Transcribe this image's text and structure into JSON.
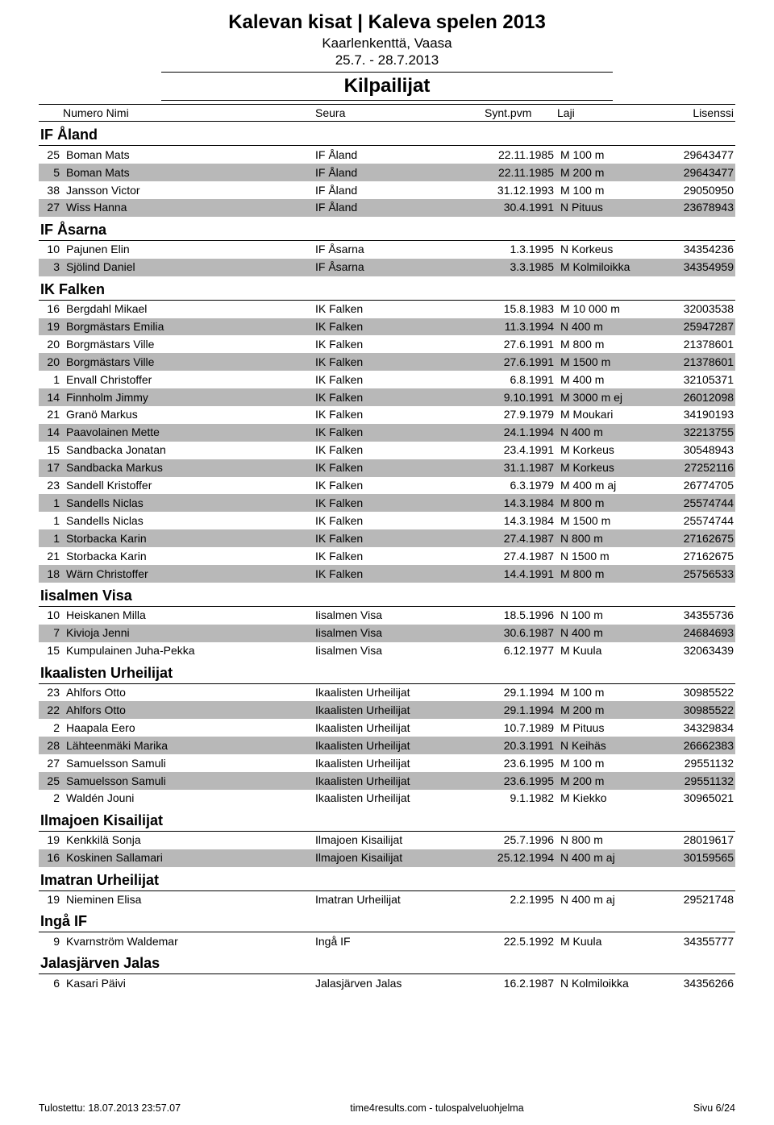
{
  "colors": {
    "shade": "#b8b8b8",
    "text": "#000000",
    "bg": "#ffffff"
  },
  "header": {
    "event_title": "Kalevan kisat | Kaleva spelen 2013",
    "venue": "Kaarlenkenttä, Vaasa",
    "dates": "25.7. - 28.7.2013",
    "section_title": "Kilpailijat"
  },
  "columns": {
    "num_name": "Numero Nimi",
    "seura": "Seura",
    "syntpvm": "Synt.pvm",
    "laji": "Laji",
    "lisenssi": "Lisenssi"
  },
  "clubs": [
    {
      "name": "IF Åland",
      "rows": [
        {
          "num": "25",
          "name": "Boman Mats",
          "club": "IF Åland",
          "bdate": "22.11.1985",
          "event": "M 100 m",
          "lic": "29643477"
        },
        {
          "num": "5",
          "name": "Boman Mats",
          "club": "IF Åland",
          "bdate": "22.11.1985",
          "event": "M 200 m",
          "lic": "29643477"
        },
        {
          "num": "38",
          "name": "Jansson Victor",
          "club": "IF Åland",
          "bdate": "31.12.1993",
          "event": "M 100 m",
          "lic": "29050950"
        },
        {
          "num": "27",
          "name": "Wiss Hanna",
          "club": "IF Åland",
          "bdate": "30.4.1991",
          "event": "N Pituus",
          "lic": "23678943"
        }
      ]
    },
    {
      "name": "IF Åsarna",
      "rows": [
        {
          "num": "10",
          "name": "Pajunen Elin",
          "club": "IF Åsarna",
          "bdate": "1.3.1995",
          "event": "N Korkeus",
          "lic": "34354236"
        },
        {
          "num": "3",
          "name": "Sjölind Daniel",
          "club": "IF Åsarna",
          "bdate": "3.3.1985",
          "event": "M Kolmiloikka",
          "lic": "34354959"
        }
      ]
    },
    {
      "name": "IK Falken",
      "rows": [
        {
          "num": "16",
          "name": "Bergdahl Mikael",
          "club": "IK Falken",
          "bdate": "15.8.1983",
          "event": "M 10 000 m",
          "lic": "32003538"
        },
        {
          "num": "19",
          "name": "Borgmästars Emilia",
          "club": "IK Falken",
          "bdate": "11.3.1994",
          "event": "N 400 m",
          "lic": "25947287"
        },
        {
          "num": "20",
          "name": "Borgmästars Ville",
          "club": "IK Falken",
          "bdate": "27.6.1991",
          "event": "M 800 m",
          "lic": "21378601"
        },
        {
          "num": "20",
          "name": "Borgmästars Ville",
          "club": "IK Falken",
          "bdate": "27.6.1991",
          "event": "M 1500 m",
          "lic": "21378601"
        },
        {
          "num": "1",
          "name": "Envall Christoffer",
          "club": "IK Falken",
          "bdate": "6.8.1991",
          "event": "M 400 m",
          "lic": "32105371"
        },
        {
          "num": "14",
          "name": "Finnholm Jimmy",
          "club": "IK Falken",
          "bdate": "9.10.1991",
          "event": "M 3000 m ej",
          "lic": "26012098"
        },
        {
          "num": "21",
          "name": "Granö Markus",
          "club": "IK Falken",
          "bdate": "27.9.1979",
          "event": "M Moukari",
          "lic": "34190193"
        },
        {
          "num": "14",
          "name": "Paavolainen Mette",
          "club": "IK Falken",
          "bdate": "24.1.1994",
          "event": "N 400 m",
          "lic": "32213755"
        },
        {
          "num": "15",
          "name": "Sandbacka Jonatan",
          "club": "IK Falken",
          "bdate": "23.4.1991",
          "event": "M Korkeus",
          "lic": "30548943"
        },
        {
          "num": "17",
          "name": "Sandbacka Markus",
          "club": "IK Falken",
          "bdate": "31.1.1987",
          "event": "M Korkeus",
          "lic": "27252116"
        },
        {
          "num": "23",
          "name": "Sandell Kristoffer",
          "club": "IK Falken",
          "bdate": "6.3.1979",
          "event": "M 400 m aj",
          "lic": "26774705"
        },
        {
          "num": "1",
          "name": "Sandells Niclas",
          "club": "IK Falken",
          "bdate": "14.3.1984",
          "event": "M 800 m",
          "lic": "25574744"
        },
        {
          "num": "1",
          "name": "Sandells Niclas",
          "club": "IK Falken",
          "bdate": "14.3.1984",
          "event": "M 1500 m",
          "lic": "25574744"
        },
        {
          "num": "1",
          "name": "Storbacka Karin",
          "club": "IK Falken",
          "bdate": "27.4.1987",
          "event": "N 800 m",
          "lic": "27162675"
        },
        {
          "num": "21",
          "name": "Storbacka Karin",
          "club": "IK Falken",
          "bdate": "27.4.1987",
          "event": "N 1500 m",
          "lic": "27162675"
        },
        {
          "num": "18",
          "name": "Wärn Christoffer",
          "club": "IK Falken",
          "bdate": "14.4.1991",
          "event": "M 800 m",
          "lic": "25756533"
        }
      ]
    },
    {
      "name": "Iisalmen Visa",
      "rows": [
        {
          "num": "10",
          "name": "Heiskanen Milla",
          "club": "Iisalmen Visa",
          "bdate": "18.5.1996",
          "event": "N 100 m",
          "lic": "34355736"
        },
        {
          "num": "7",
          "name": "Kivioja Jenni",
          "club": "Iisalmen Visa",
          "bdate": "30.6.1987",
          "event": "N 400 m",
          "lic": "24684693"
        },
        {
          "num": "15",
          "name": "Kumpulainen Juha-Pekka",
          "club": "Iisalmen Visa",
          "bdate": "6.12.1977",
          "event": "M Kuula",
          "lic": "32063439"
        }
      ]
    },
    {
      "name": "Ikaalisten Urheilijat",
      "rows": [
        {
          "num": "23",
          "name": "Ahlfors Otto",
          "club": "Ikaalisten Urheilijat",
          "bdate": "29.1.1994",
          "event": "M 100 m",
          "lic": "30985522"
        },
        {
          "num": "22",
          "name": "Ahlfors Otto",
          "club": "Ikaalisten Urheilijat",
          "bdate": "29.1.1994",
          "event": "M 200 m",
          "lic": "30985522"
        },
        {
          "num": "2",
          "name": "Haapala Eero",
          "club": "Ikaalisten Urheilijat",
          "bdate": "10.7.1989",
          "event": "M Pituus",
          "lic": "34329834"
        },
        {
          "num": "28",
          "name": "Lähteenmäki Marika",
          "club": "Ikaalisten Urheilijat",
          "bdate": "20.3.1991",
          "event": "N Keihäs",
          "lic": "26662383"
        },
        {
          "num": "27",
          "name": "Samuelsson Samuli",
          "club": "Ikaalisten Urheilijat",
          "bdate": "23.6.1995",
          "event": "M 100 m",
          "lic": "29551132"
        },
        {
          "num": "25",
          "name": "Samuelsson Samuli",
          "club": "Ikaalisten Urheilijat",
          "bdate": "23.6.1995",
          "event": "M 200 m",
          "lic": "29551132"
        },
        {
          "num": "2",
          "name": "Waldén Jouni",
          "club": "Ikaalisten Urheilijat",
          "bdate": "9.1.1982",
          "event": "M Kiekko",
          "lic": "30965021"
        }
      ]
    },
    {
      "name": "Ilmajoen Kisailijat",
      "rows": [
        {
          "num": "19",
          "name": "Kenkkilä Sonja",
          "club": "Ilmajoen Kisailijat",
          "bdate": "25.7.1996",
          "event": "N 800 m",
          "lic": "28019617"
        },
        {
          "num": "16",
          "name": "Koskinen Sallamari",
          "club": "Ilmajoen Kisailijat",
          "bdate": "25.12.1994",
          "event": "N 400 m aj",
          "lic": "30159565"
        }
      ]
    },
    {
      "name": "Imatran Urheilijat",
      "rows": [
        {
          "num": "19",
          "name": "Nieminen Elisa",
          "club": "Imatran Urheilijat",
          "bdate": "2.2.1995",
          "event": "N 400 m aj",
          "lic": "29521748"
        }
      ]
    },
    {
      "name": "Ingå IF",
      "rows": [
        {
          "num": "9",
          "name": "Kvarnström Waldemar",
          "club": "Ingå IF",
          "bdate": "22.5.1992",
          "event": "M Kuula",
          "lic": "34355777"
        }
      ]
    },
    {
      "name": "Jalasjärven Jalas",
      "rows": [
        {
          "num": "6",
          "name": "Kasari Päivi",
          "club": "Jalasjärven Jalas",
          "bdate": "16.2.1987",
          "event": "N Kolmiloikka",
          "lic": "34356266"
        }
      ]
    }
  ],
  "footer": {
    "printed": "Tulostettu: 18.07.2013 23:57.07",
    "center": "time4results.com - tulospalveluohjelma",
    "page": "Sivu 6/24"
  }
}
